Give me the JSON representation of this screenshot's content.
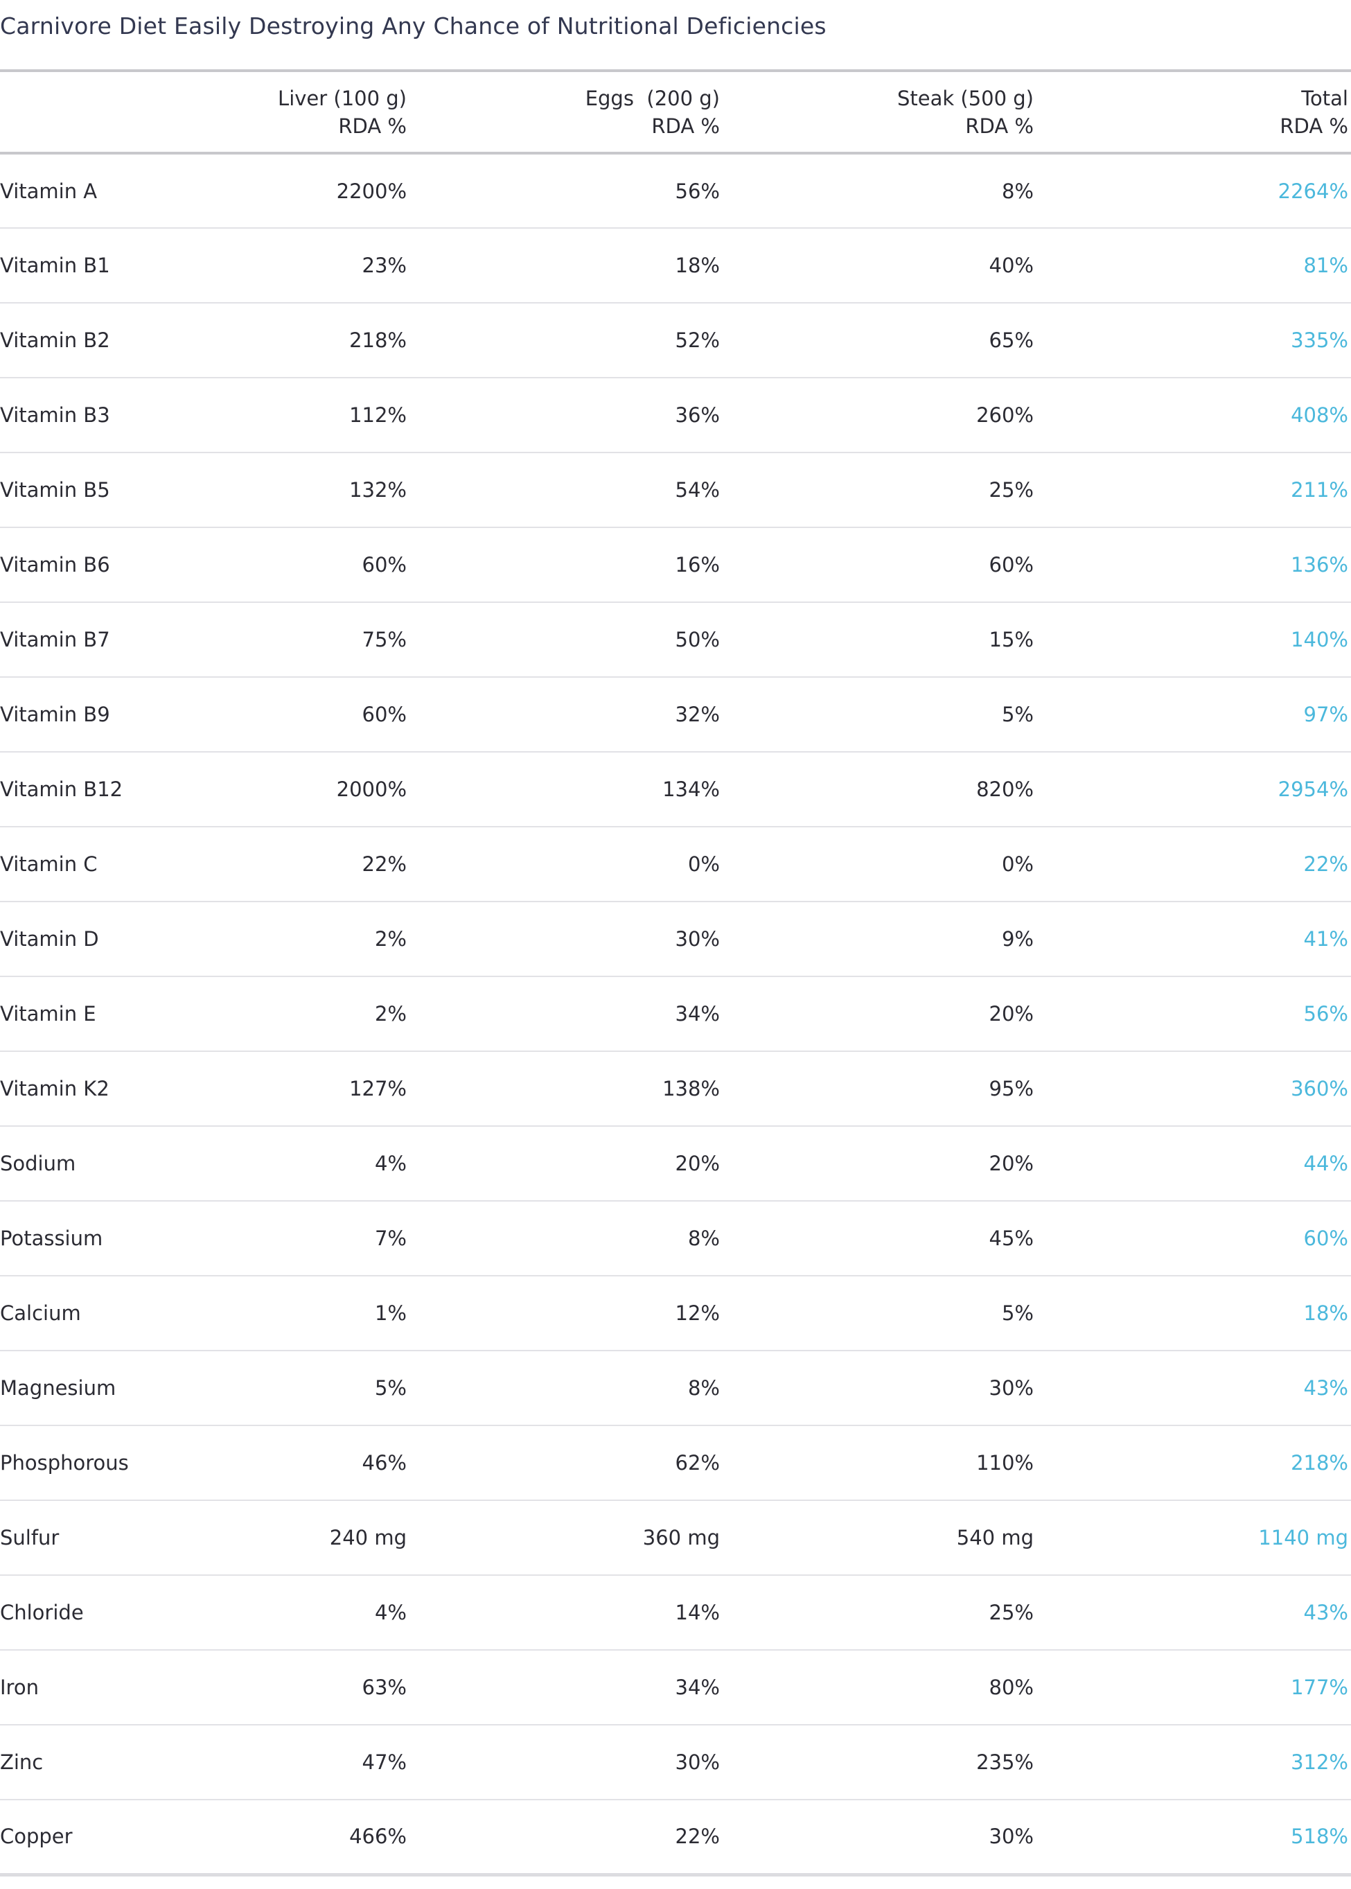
{
  "title": "Carnivore Diet Easily Destroying Any Chance of Nutritional Deficiencies",
  "columns": [
    {
      "line1": "",
      "line2": ""
    },
    {
      "line1": "Liver (100 g)",
      "line2": "RDA %"
    },
    {
      "line1": "Eggs  (200 g)",
      "line2": "RDA %"
    },
    {
      "line1": "Steak (500 g)",
      "line2": "RDA %"
    },
    {
      "line1": "Total",
      "line2": "RDA %"
    }
  ],
  "accent_color": "#4bb8dc",
  "rows": [
    {
      "nutrient": "Vitamin A",
      "liver": "2200%",
      "eggs": "56%",
      "steak": "8%",
      "total": "2264%"
    },
    {
      "nutrient": "Vitamin B1",
      "liver": "23%",
      "eggs": "18%",
      "steak": "40%",
      "total": "81%"
    },
    {
      "nutrient": "Vitamin B2",
      "liver": "218%",
      "eggs": "52%",
      "steak": "65%",
      "total": "335%"
    },
    {
      "nutrient": "Vitamin B3",
      "liver": "112%",
      "eggs": "36%",
      "steak": "260%",
      "total": "408%"
    },
    {
      "nutrient": "Vitamin B5",
      "liver": "132%",
      "eggs": "54%",
      "steak": "25%",
      "total": "211%"
    },
    {
      "nutrient": "Vitamin B6",
      "liver": "60%",
      "eggs": "16%",
      "steak": "60%",
      "total": "136%"
    },
    {
      "nutrient": "Vitamin B7",
      "liver": "75%",
      "eggs": "50%",
      "steak": "15%",
      "total": "140%"
    },
    {
      "nutrient": "Vitamin B9",
      "liver": "60%",
      "eggs": "32%",
      "steak": "5%",
      "total": "97%"
    },
    {
      "nutrient": "Vitamin B12",
      "liver": "2000%",
      "eggs": "134%",
      "steak": "820%",
      "total": "2954%"
    },
    {
      "nutrient": "Vitamin C",
      "liver": "22%",
      "eggs": "0%",
      "steak": "0%",
      "total": "22%"
    },
    {
      "nutrient": "Vitamin D",
      "liver": "2%",
      "eggs": "30%",
      "steak": "9%",
      "total": "41%"
    },
    {
      "nutrient": "Vitamin E",
      "liver": "2%",
      "eggs": "34%",
      "steak": "20%",
      "total": "56%"
    },
    {
      "nutrient": "Vitamin K2",
      "liver": "127%",
      "eggs": "138%",
      "steak": "95%",
      "total": "360%"
    },
    {
      "nutrient": "Sodium",
      "liver": "4%",
      "eggs": "20%",
      "steak": "20%",
      "total": "44%"
    },
    {
      "nutrient": "Potassium",
      "liver": "7%",
      "eggs": "8%",
      "steak": "45%",
      "total": "60%"
    },
    {
      "nutrient": "Calcium",
      "liver": "1%",
      "eggs": "12%",
      "steak": "5%",
      "total": "18%"
    },
    {
      "nutrient": "Magnesium",
      "liver": "5%",
      "eggs": "8%",
      "steak": "30%",
      "total": "43%"
    },
    {
      "nutrient": "Phosphorous",
      "liver": "46%",
      "eggs": "62%",
      "steak": "110%",
      "total": "218%"
    },
    {
      "nutrient": "Sulfur",
      "liver": "240 mg",
      "eggs": "360 mg",
      "steak": "540 mg",
      "total": "1140 mg"
    },
    {
      "nutrient": "Chloride",
      "liver": "4%",
      "eggs": "14%",
      "steak": "25%",
      "total": "43%"
    },
    {
      "nutrient": "Iron",
      "liver": "63%",
      "eggs": "34%",
      "steak": "80%",
      "total": "177%"
    },
    {
      "nutrient": "Zinc",
      "liver": "47%",
      "eggs": "30%",
      "steak": "235%",
      "total": "312%"
    },
    {
      "nutrient": "Copper",
      "liver": "466%",
      "eggs": "22%",
      "steak": "30%",
      "total": "518%"
    }
  ]
}
